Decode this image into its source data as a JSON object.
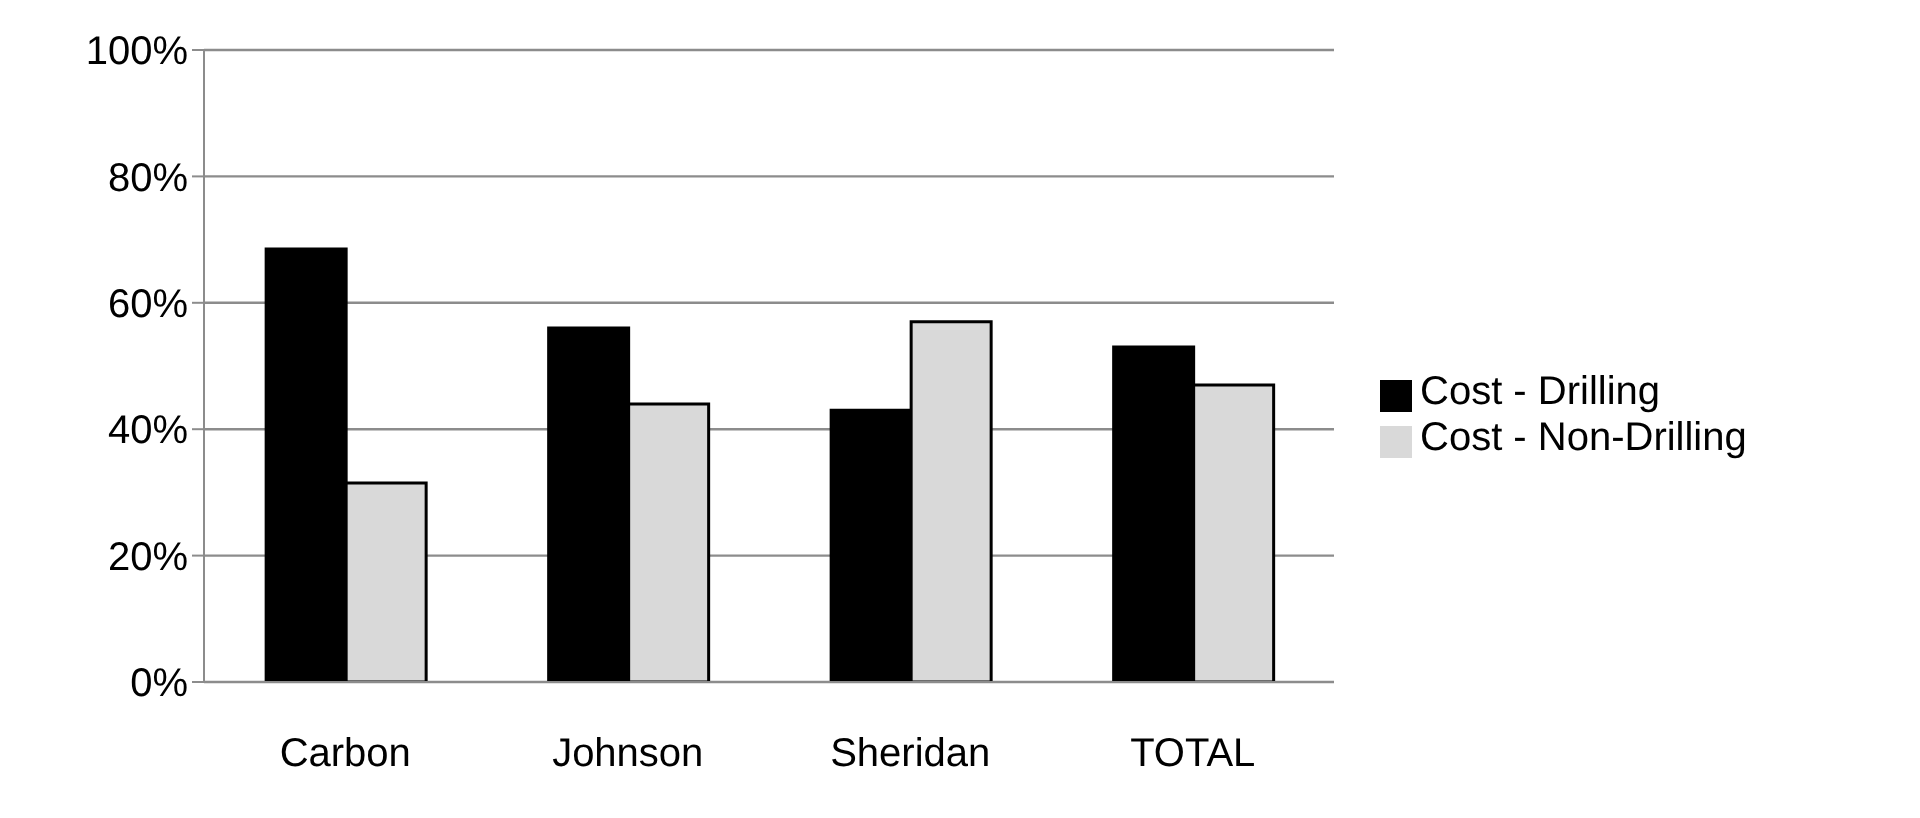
{
  "chart_data": {
    "type": "bar",
    "categories": [
      "Carbon",
      "Johnson",
      "Sheridan",
      "TOTAL"
    ],
    "series": [
      {
        "name": "Cost - Drilling",
        "color": "#000000",
        "values": [
          68.5,
          56,
          43,
          53
        ]
      },
      {
        "name": "Cost - Non-Drilling",
        "color": "#d9d9d9",
        "values": [
          31.5,
          44,
          57,
          47
        ]
      }
    ],
    "ylim": [
      0,
      100
    ],
    "yticks": [
      {
        "value": 0,
        "label": "0%"
      },
      {
        "value": 20,
        "label": "20%"
      },
      {
        "value": 40,
        "label": "40%"
      },
      {
        "value": 60,
        "label": "60%"
      },
      {
        "value": 80,
        "label": "80%"
      },
      {
        "value": 100,
        "label": "100%"
      }
    ],
    "grid": "y",
    "legend": "right"
  }
}
